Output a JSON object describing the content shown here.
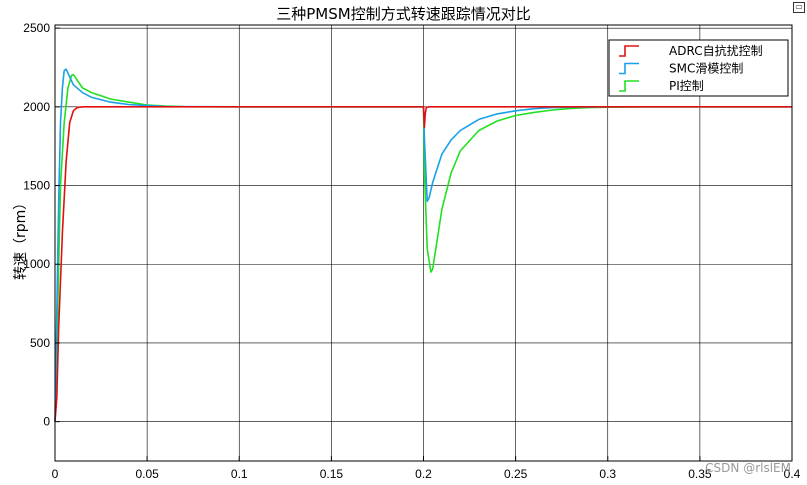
{
  "chart_data": {
    "type": "line",
    "title": "三种PMSM控制方式转速跟踪情况对比",
    "xlabel": "",
    "ylabel": "转速（rpm）",
    "xlim": [
      0,
      0.4
    ],
    "ylim": [
      -250,
      2520
    ],
    "x_ticks": [
      0,
      0.05,
      0.1,
      0.15,
      0.2,
      0.25,
      0.3,
      0.35,
      0.4
    ],
    "x_tick_labels": [
      "0",
      "0.05",
      "0.1",
      "0.15",
      "0.2",
      "0.25",
      "0.3",
      "0.35",
      "0.4"
    ],
    "y_ticks": [
      0,
      500,
      1000,
      1500,
      2000,
      2500
    ],
    "y_tick_labels": [
      "0",
      "500",
      "1000",
      "1500",
      "2000",
      "2500"
    ],
    "grid": true,
    "legend_position": "top-right",
    "series": [
      {
        "name": "ADRC自抗扰控制",
        "color": "#e01010",
        "x": [
          0,
          0.001,
          0.002,
          0.004,
          0.006,
          0.008,
          0.01,
          0.012,
          0.015,
          0.02,
          0.05,
          0.1,
          0.15,
          0.2,
          0.2005,
          0.201,
          0.2015,
          0.203,
          0.21,
          0.25,
          0.3,
          0.35,
          0.4
        ],
        "values": [
          0,
          150,
          600,
          1200,
          1650,
          1900,
          1975,
          1995,
          2000,
          2000,
          2000,
          2000,
          2000,
          2000,
          1870,
          1960,
          1995,
          2000,
          2000,
          2000,
          2000,
          2000,
          2000
        ]
      },
      {
        "name": "SMC滑模控制",
        "color": "#1aa0e8",
        "x": [
          0,
          0.001,
          0.002,
          0.003,
          0.004,
          0.005,
          0.006,
          0.008,
          0.01,
          0.015,
          0.02,
          0.03,
          0.04,
          0.05,
          0.06,
          0.1,
          0.2,
          0.2005,
          0.202,
          0.203,
          0.205,
          0.21,
          0.215,
          0.22,
          0.23,
          0.24,
          0.25,
          0.26,
          0.27,
          0.28,
          0.3,
          0.35,
          0.4
        ],
        "values": [
          0,
          700,
          1400,
          1900,
          2120,
          2230,
          2240,
          2190,
          2140,
          2090,
          2060,
          2030,
          2015,
          2008,
          2002,
          2000,
          2000,
          1800,
          1400,
          1420,
          1520,
          1700,
          1790,
          1850,
          1920,
          1955,
          1975,
          1988,
          1995,
          1998,
          2000,
          2000,
          2000
        ]
      },
      {
        "name": "PI控制",
        "color": "#22e022",
        "x": [
          0,
          0.001,
          0.002,
          0.003,
          0.005,
          0.007,
          0.009,
          0.01,
          0.012,
          0.015,
          0.02,
          0.025,
          0.03,
          0.04,
          0.05,
          0.06,
          0.07,
          0.1,
          0.2,
          0.2005,
          0.202,
          0.204,
          0.205,
          0.21,
          0.215,
          0.22,
          0.23,
          0.24,
          0.25,
          0.26,
          0.27,
          0.28,
          0.29,
          0.3,
          0.32,
          0.35,
          0.4
        ],
        "values": [
          0,
          400,
          1000,
          1500,
          1900,
          2120,
          2200,
          2205,
          2170,
          2120,
          2090,
          2070,
          2050,
          2030,
          2012,
          2005,
          2001,
          2000,
          2000,
          1600,
          1100,
          950,
          970,
          1350,
          1580,
          1720,
          1850,
          1910,
          1945,
          1965,
          1980,
          1990,
          1995,
          1998,
          2000,
          2000,
          2000
        ]
      }
    ]
  },
  "watermark": "CSDN @rlslEM"
}
